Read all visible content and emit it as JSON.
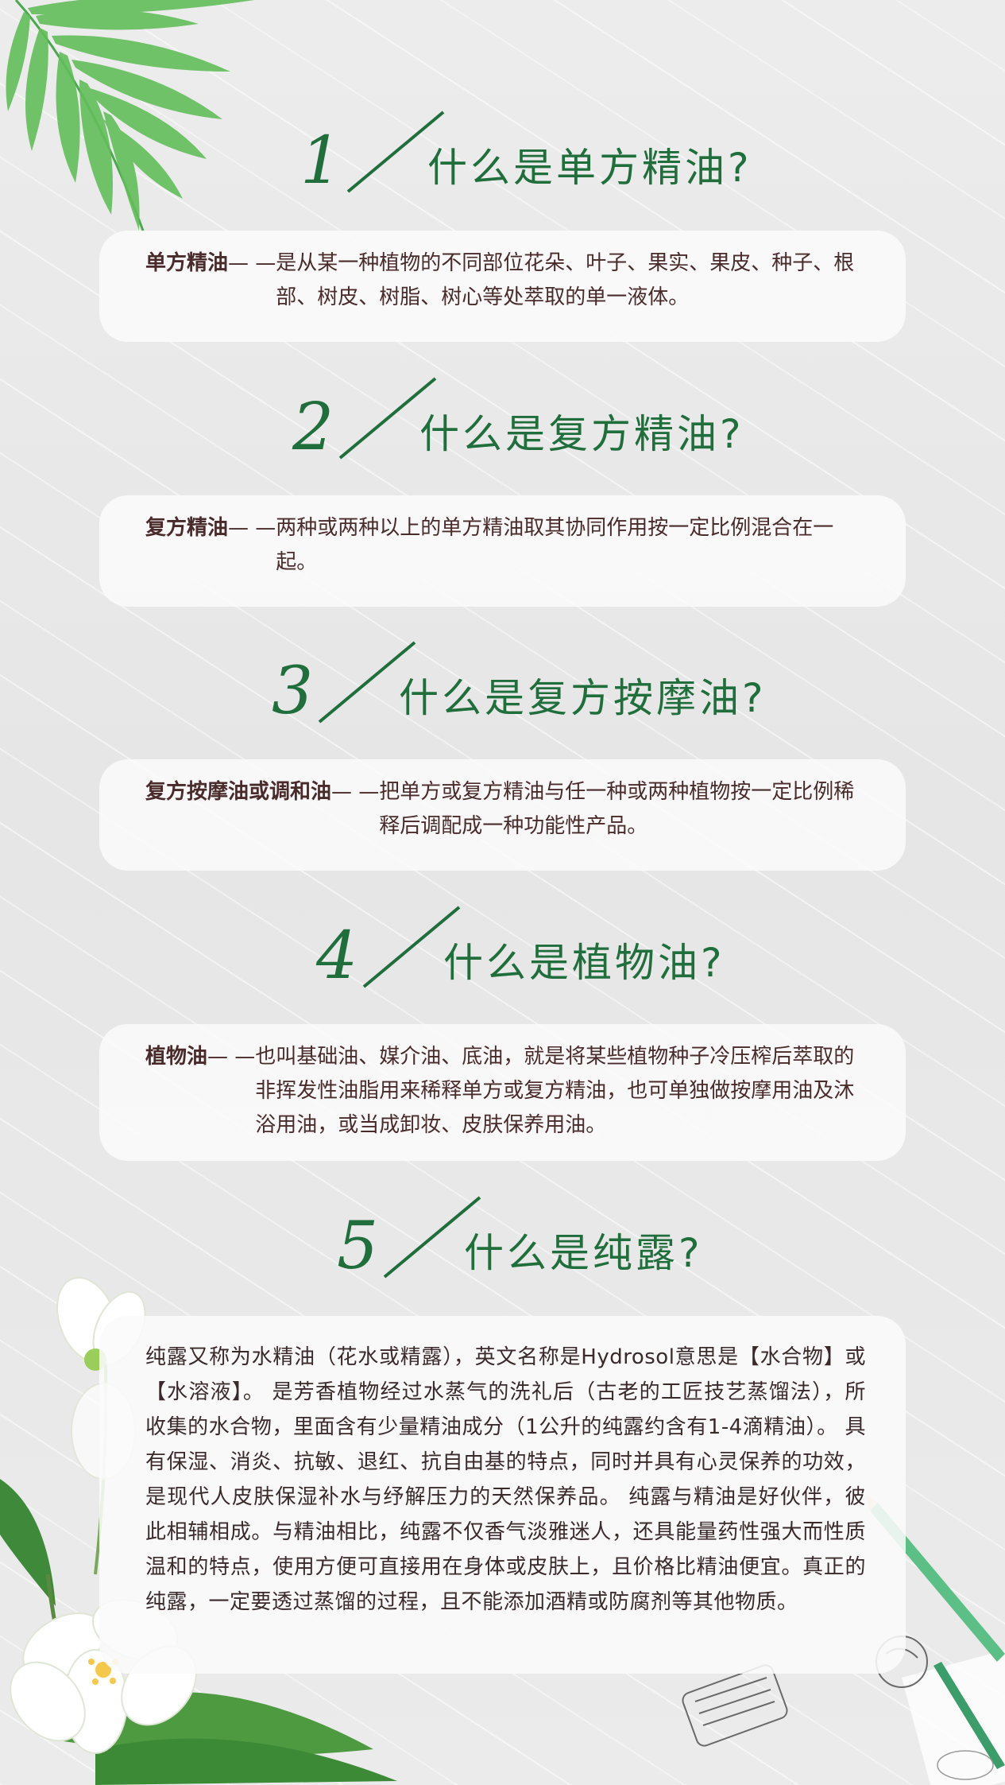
{
  "sections": [
    {
      "number": "1",
      "question": "什么是单方精油?",
      "term": "单方精油",
      "dash": "— —",
      "definition": "是从某一种植物的不同部位花朵、叶子、果实、果皮、种子、根部、树皮、树脂、树心等处萃取的单一液体。"
    },
    {
      "number": "2",
      "question": "什么是复方精油?",
      "term": "复方精油",
      "dash": "— —",
      "definition": "两种或两种以上的单方精油取其协同作用按一定比例混合在一起。"
    },
    {
      "number": "3",
      "question": "什么是复方按摩油?",
      "term": "复方按摩油或调和油",
      "dash": "— —",
      "definition": "把单方或复方精油与任一种或两种植物按一定比例稀释后调配成一种功能性产品。"
    },
    {
      "number": "4",
      "question": "什么是植物油?",
      "term": "植物油",
      "dash": "— —",
      "definition": "也叫基础油、媒介油、底油，就是将某些植物种子冷压榨后萃取的非挥发性油脂用来稀释单方或复方精油，也可单独做按摩用油及沐浴用油，或当成卸妆、皮肤保养用油。"
    },
    {
      "number": "5",
      "question": "什么是纯露?",
      "paragraph": "纯露又称为水精油（花水或精露），英文名称是Hydrosol意思是【水合物】或【水溶液】。 是芳香植物经过水蒸气的洗礼后（古老的工匠技艺蒸馏法），所收集的水合物，里面含有少量精油成分（1公升的纯露约含有1-4滴精油）。 具有保湿、消炎、抗敏、退红、抗自由基的特点，同时并具有心灵保养的功效，是现代人皮肤保湿补水与纾解压力的天然保养品。 纯露与精油是好伙伴，彼此相辅相成。与精油相比，纯露不仅香气淡雅迷人，还具能量药性强大而性质温和的特点，使用方便可直接用在身体或皮肤上，且价格比精油便宜。真正的纯露，一定要透过蒸馏的过程，且不能添加酒精或防腐剂等其他物质。"
    }
  ],
  "colors": {
    "heading_green": "#1f6e3c",
    "term_brown": "#4a2b2b",
    "leaf_green": "#5cb85c"
  }
}
